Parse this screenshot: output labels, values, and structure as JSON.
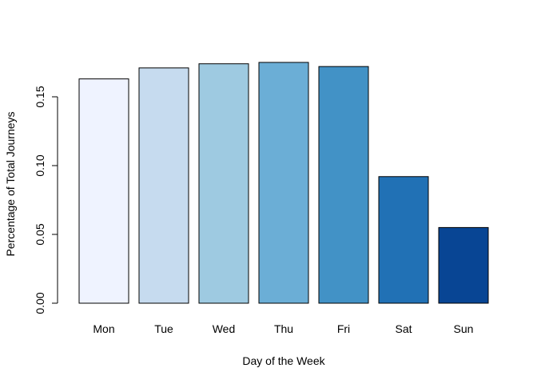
{
  "chart_data": {
    "type": "bar",
    "title": "",
    "xlabel": "Day of the Week",
    "ylabel": "Percentage of Total Journeys",
    "categories": [
      "Mon",
      "Tue",
      "Wed",
      "Thu",
      "Fri",
      "Sat",
      "Sun"
    ],
    "values": [
      0.163,
      0.171,
      0.174,
      0.175,
      0.172,
      0.092,
      0.055
    ],
    "colors": [
      "#EFF3FF",
      "#C6DBEF",
      "#9ECAE1",
      "#6BAED6",
      "#4292C6",
      "#2171B5",
      "#084594"
    ],
    "ylim": [
      0,
      0.175
    ],
    "yticks": [
      0.0,
      0.05,
      0.1,
      0.15
    ],
    "ytick_labels": [
      "0.00",
      "0.05",
      "0.10",
      "0.15"
    ],
    "grid": false,
    "legend": "none"
  }
}
